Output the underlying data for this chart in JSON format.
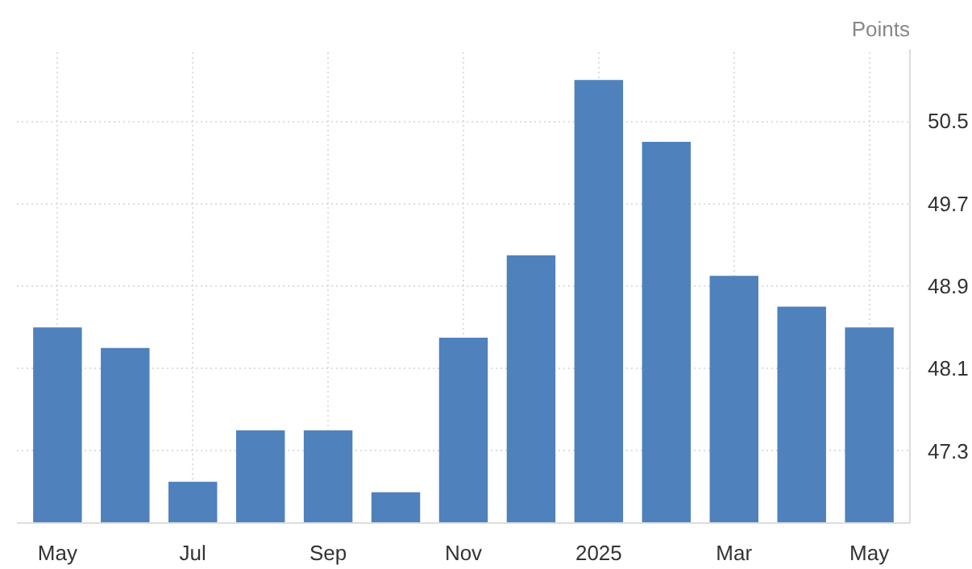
{
  "chart_data": {
    "type": "bar",
    "ylabel": "Points",
    "categories": [
      "May",
      null,
      "Jul",
      null,
      "Sep",
      null,
      "Nov",
      null,
      "2025",
      null,
      "Mar",
      null,
      "May"
    ],
    "values": [
      48.5,
      48.3,
      47.0,
      47.5,
      47.5,
      46.9,
      48.4,
      49.2,
      50.9,
      50.3,
      49.0,
      48.7,
      48.5
    ],
    "color": "#4f81bd",
    "ylim": [
      46.6,
      51.2
    ],
    "yticks": [
      47.3,
      48.1,
      48.9,
      49.7,
      50.5
    ],
    "grid": true
  }
}
